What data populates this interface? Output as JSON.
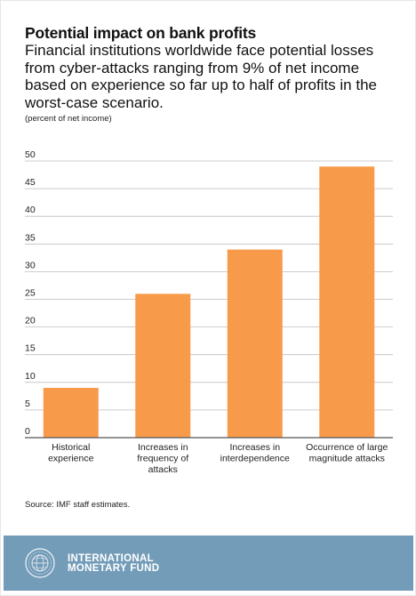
{
  "header": {
    "title": "Potential impact on bank profits",
    "subtitle": "Financial institutions worldwide face potential losses from cyber-attacks ranging from 9% of net income based on experience so far up to half of profits in the worst-case scenario.",
    "unit_note": "(percent of net income)"
  },
  "chart_data": {
    "type": "bar",
    "categories": [
      [
        "Historical",
        "experience"
      ],
      [
        "Increases in",
        "frequency of",
        "attacks"
      ],
      [
        "Increases in",
        "interdependence"
      ],
      [
        "Occurrence of large",
        "magnitude attacks"
      ]
    ],
    "values": [
      9,
      26,
      34,
      49
    ],
    "ylim": [
      0,
      50
    ],
    "yticks": [
      0,
      5,
      10,
      15,
      20,
      25,
      30,
      35,
      40,
      45,
      50
    ],
    "grid": true,
    "bar_color": "#f79b4b",
    "grid_color": "#bdbdbd",
    "axis_color": "#555555"
  },
  "footer": {
    "source": "Source: IMF staff estimates.",
    "org_line1": "INTERNATIONAL",
    "org_line2": "MONETARY FUND",
    "background": "#739cb9"
  },
  "logo": {
    "icon": "imf-seal-icon"
  }
}
